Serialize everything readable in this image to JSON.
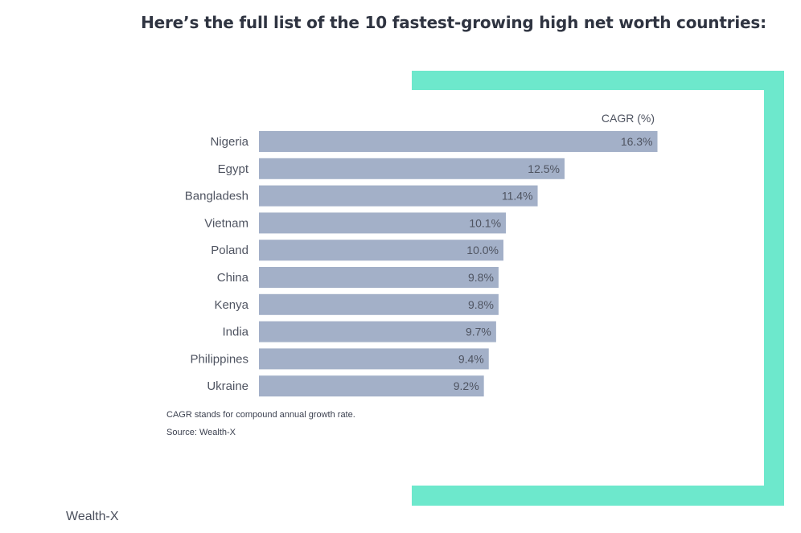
{
  "page": {
    "title": "Here’s the full list of the 10 fastest-growing high net worth countries:",
    "credit": "Wealth-X"
  },
  "colors": {
    "frame": "#6de8cc",
    "bar": "#a3b0c8",
    "text": "#4f5461"
  },
  "chart_data": {
    "type": "bar",
    "orientation": "horizontal",
    "value_label": "CAGR (%)",
    "categories": [
      "Nigeria",
      "Egypt",
      "Bangladesh",
      "Vietnam",
      "Poland",
      "China",
      "Kenya",
      "India",
      "Philippines",
      "Ukraine"
    ],
    "values": [
      16.3,
      12.5,
      11.4,
      10.1,
      10.0,
      9.8,
      9.8,
      9.7,
      9.4,
      9.2
    ],
    "data_labels": [
      "16.3%",
      "12.5%",
      "11.4%",
      "10.1%",
      "10.0%",
      "9.8%",
      "9.8%",
      "9.7%",
      "9.4%",
      "9.2%"
    ],
    "grid": false,
    "notes": [
      "CAGR stands for compound annual growth rate.",
      "Source: Wealth-X"
    ]
  }
}
